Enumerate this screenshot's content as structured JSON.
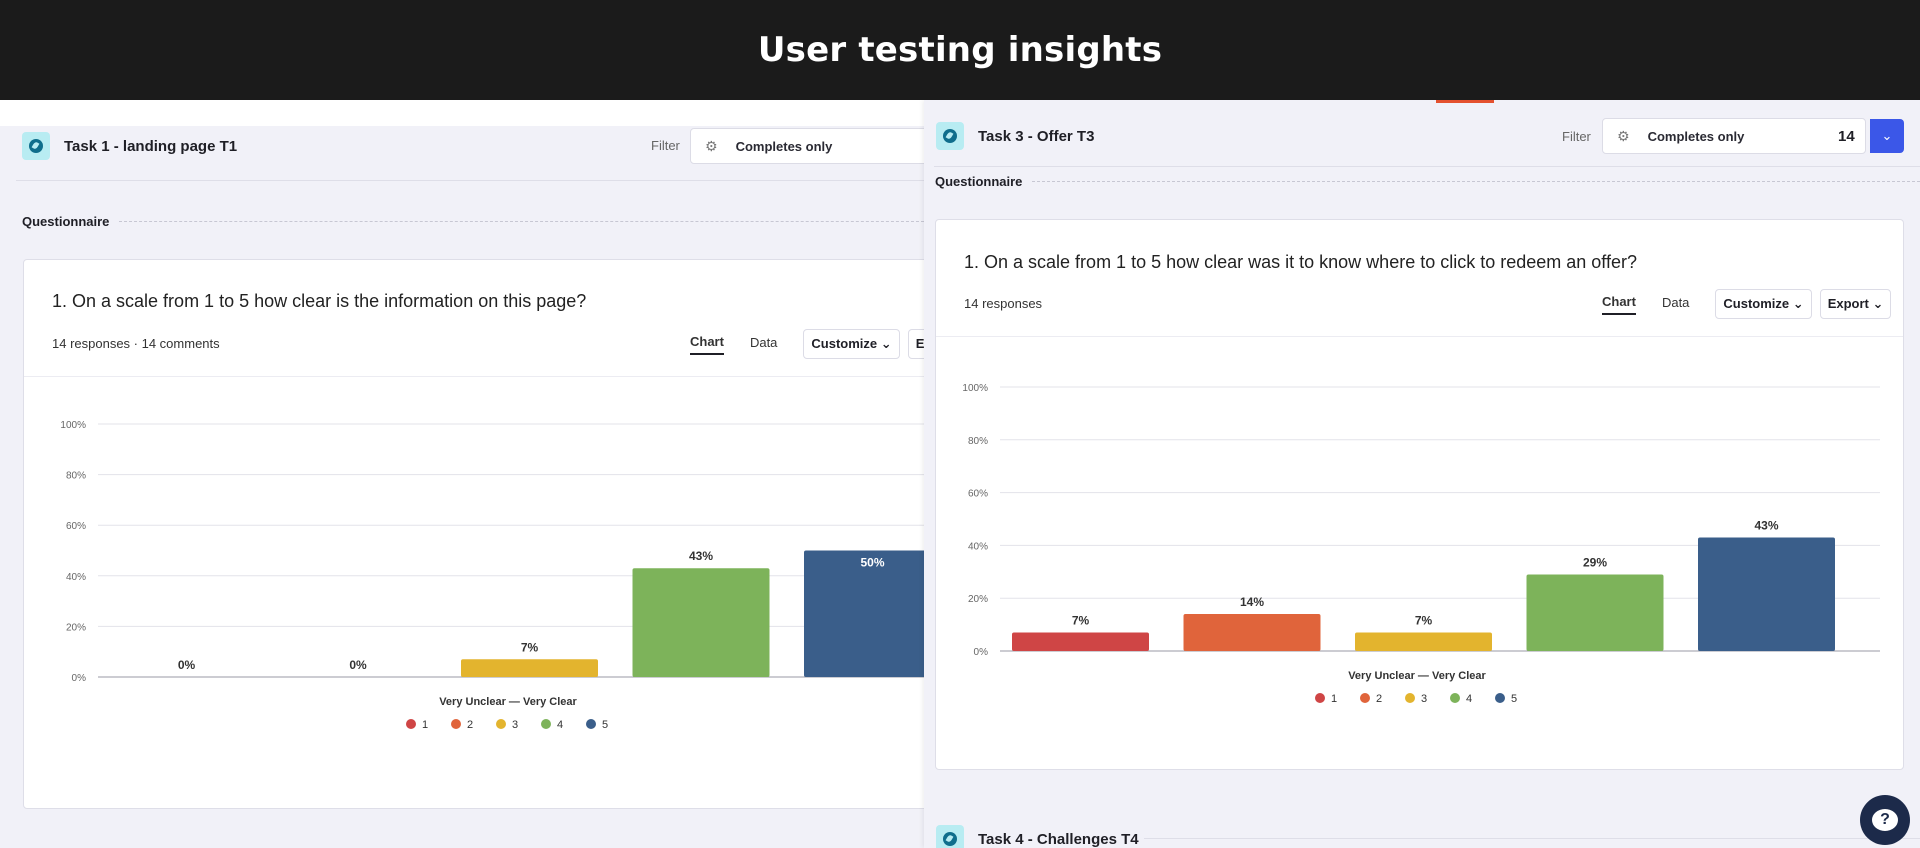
{
  "banner": {
    "title": "User testing insights"
  },
  "left": {
    "task_title": "Task 1 - landing page T1",
    "filter_label": "Filter",
    "filter_value": "Completes only",
    "section": "Questionnaire",
    "question": "1. On a scale from 1 to 5 how clear is the information on this page?",
    "meta": "14 responses · 14 comments",
    "tabs": {
      "chart": "Chart",
      "data": "Data",
      "customize": "Customize",
      "export": "Export"
    }
  },
  "right": {
    "task_title": "Task 3 - Offer T3",
    "filter_label": "Filter",
    "filter_value": "Completes only",
    "filter_count": "14",
    "section": "Questionnaire",
    "question": "1. On a scale from 1 to 5 how clear was it to know where to click to redeem an offer?",
    "meta": "14 responses",
    "tabs": {
      "chart": "Chart",
      "data": "Data",
      "customize": "Customize",
      "export": "Export"
    },
    "next_task_title": "Task 4 - Challenges T4"
  },
  "icons": {
    "task": "task-icon",
    "filter": "sliders-icon",
    "dropdown": "chevron-down-icon",
    "chat": "help-chat-icon"
  },
  "chart_data": [
    {
      "type": "bar",
      "categories": [
        "1",
        "2",
        "3",
        "4",
        "5"
      ],
      "values": [
        0,
        0,
        7,
        43,
        50
      ],
      "value_labels": [
        "0%",
        "0%",
        "7%",
        "43%",
        "50%"
      ],
      "colors": [
        "#cf4545",
        "#e0643b",
        "#e3b42e",
        "#7db35a",
        "#3a5e8a"
      ],
      "ylim": [
        0,
        100
      ],
      "yticks": [
        "0%",
        "20%",
        "40%",
        "60%",
        "80%",
        "100%"
      ],
      "xlabel": "Very Unclear — Very Clear",
      "legend": [
        "1",
        "2",
        "3",
        "4",
        "5"
      ],
      "legend_position": "bottom",
      "grid": true
    },
    {
      "type": "bar",
      "categories": [
        "1",
        "2",
        "3",
        "4",
        "5"
      ],
      "values": [
        7,
        14,
        7,
        29,
        43
      ],
      "value_labels": [
        "7%",
        "14%",
        "7%",
        "29%",
        "43%"
      ],
      "colors": [
        "#cf4545",
        "#e0643b",
        "#e3b42e",
        "#7db35a",
        "#3a5e8a"
      ],
      "ylim": [
        0,
        100
      ],
      "yticks": [
        "0%",
        "20%",
        "40%",
        "60%",
        "80%",
        "100%"
      ],
      "xlabel": "Very Unclear — Very Clear",
      "legend": [
        "1",
        "2",
        "3",
        "4",
        "5"
      ],
      "legend_position": "bottom",
      "grid": true
    }
  ]
}
